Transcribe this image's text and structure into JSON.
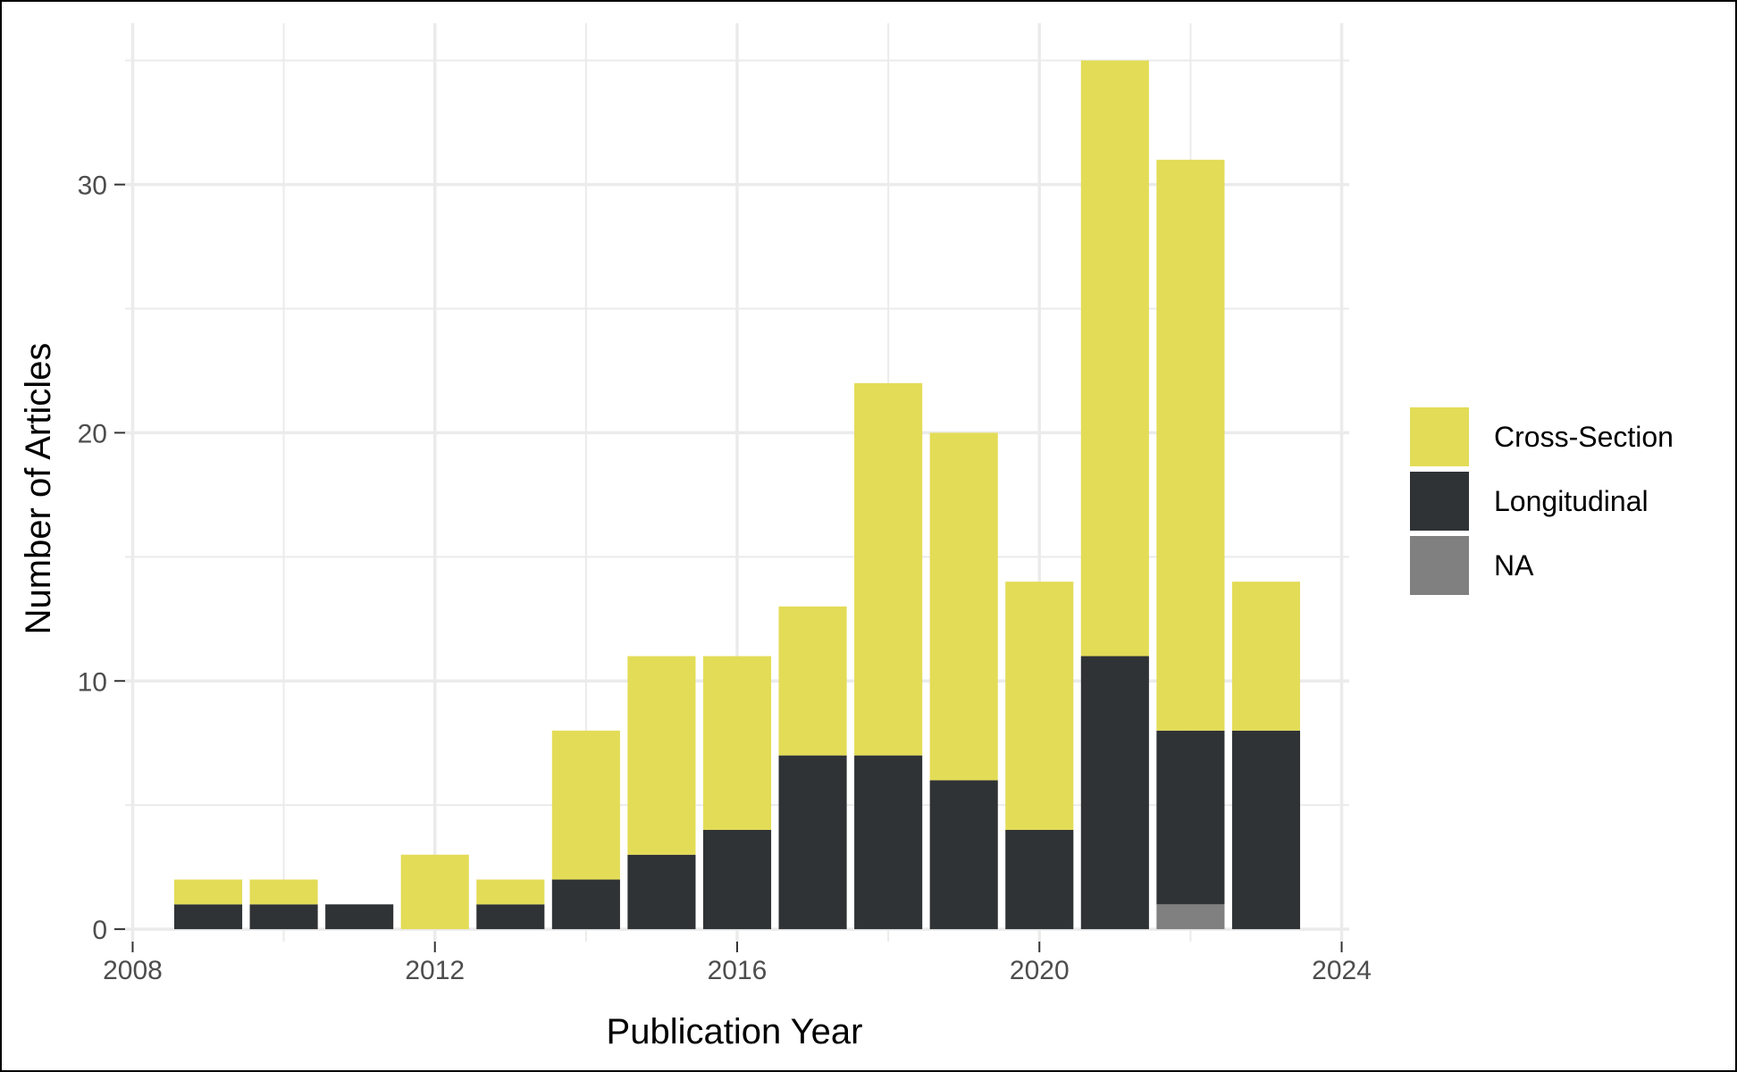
{
  "chart_data": {
    "type": "bar",
    "stacked": true,
    "title": "",
    "xlabel": "Publication Year",
    "ylabel": "Number of Articles",
    "x": [
      2009,
      2010,
      2011,
      2012,
      2013,
      2014,
      2015,
      2016,
      2017,
      2018,
      2019,
      2020,
      2021,
      2022,
      2023
    ],
    "series": [
      {
        "name": "NA",
        "color": "#808080",
        "values": [
          0,
          0,
          0,
          0,
          0,
          0,
          0,
          0,
          0,
          0,
          0,
          0,
          0,
          1,
          0
        ]
      },
      {
        "name": "Longitudinal",
        "color": "#303335",
        "values": [
          1,
          1,
          1,
          0,
          1,
          2,
          3,
          4,
          7,
          7,
          6,
          4,
          11,
          7,
          8
        ]
      },
      {
        "name": "Cross-Section",
        "color": "#E3DC57",
        "values": [
          1,
          1,
          0,
          3,
          1,
          6,
          8,
          7,
          6,
          15,
          14,
          10,
          24,
          23,
          6
        ]
      }
    ],
    "legend_order": [
      "Cross-Section",
      "Longitudinal",
      "NA"
    ],
    "xlim": [
      2007.9,
      2024.1
    ],
    "ylim": [
      -0.5,
      36.5
    ],
    "x_ticks": [
      2008,
      2012,
      2016,
      2020,
      2024
    ],
    "x_tick_labels": [
      "2008",
      "2012",
      "2016",
      "2020",
      "2024"
    ],
    "y_ticks": [
      0,
      10,
      20,
      30
    ],
    "y_tick_labels": [
      "0",
      "10",
      "20",
      "30"
    ],
    "grid": true,
    "legend_position": "right"
  }
}
